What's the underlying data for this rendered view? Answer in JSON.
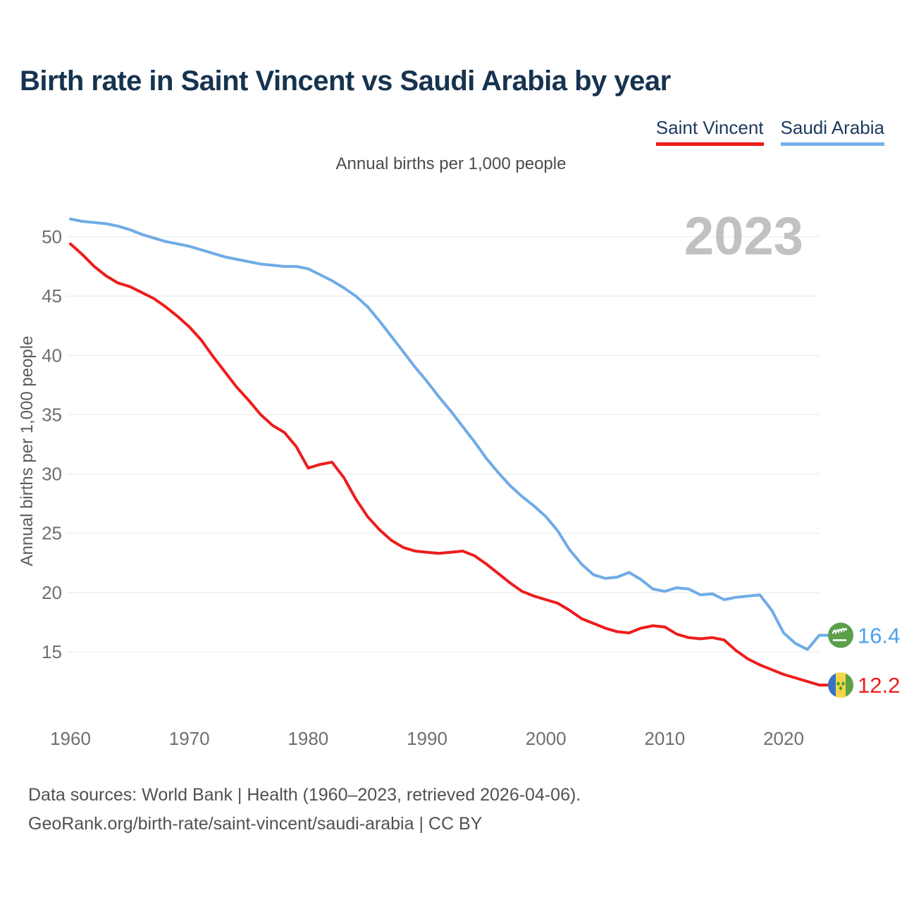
{
  "page": {
    "title": "Birth rate in Saint Vincent vs Saudi Arabia by year",
    "subtitle": "Annual births per 1,000 people",
    "watermark_year": "2023",
    "footer_lines": [
      "Data sources: World Bank | Health (1960–2023, retrieved 2026-04-06).",
      "GeoRank.org/birth-rate/saint-vincent/saudi-arabia | CC BY"
    ]
  },
  "legend": {
    "items": [
      {
        "label": "Saint Vincent",
        "color": "#ee1c1c"
      },
      {
        "label": "Saudi Arabia",
        "color": "#76b1e9"
      }
    ]
  },
  "chart_data": {
    "type": "line",
    "title": "Birth rate in Saint Vincent vs Saudi Arabia by year",
    "subtitle": "Annual births per 1,000 people",
    "ylabel": "Annual births per 1,000 people",
    "xlabel": "",
    "grid": true,
    "legend_position": "top-right",
    "xlim": [
      1960,
      2023
    ],
    "ylim": [
      12,
      52
    ],
    "xticks": [
      1960,
      1970,
      1980,
      1990,
      2000,
      2010,
      2020
    ],
    "yticks": [
      15,
      20,
      25,
      30,
      35,
      40,
      45,
      50
    ],
    "x": [
      1960,
      1961,
      1962,
      1963,
      1964,
      1965,
      1966,
      1967,
      1968,
      1969,
      1970,
      1971,
      1972,
      1973,
      1974,
      1975,
      1976,
      1977,
      1978,
      1979,
      1980,
      1981,
      1982,
      1983,
      1984,
      1985,
      1986,
      1987,
      1988,
      1989,
      1990,
      1991,
      1992,
      1993,
      1994,
      1995,
      1996,
      1997,
      1998,
      1999,
      2000,
      2001,
      2002,
      2003,
      2004,
      2005,
      2006,
      2007,
      2008,
      2009,
      2010,
      2011,
      2012,
      2013,
      2014,
      2015,
      2016,
      2017,
      2018,
      2019,
      2020,
      2021,
      2022,
      2023
    ],
    "series": [
      {
        "name": "Saint Vincent",
        "color": "#ee1c1c",
        "end_label": "12.2",
        "end_label_color": "#ee1c1c",
        "flag": "saint-vincent-flag",
        "values": [
          49.4,
          48.5,
          47.5,
          46.7,
          46.1,
          45.8,
          45.3,
          44.8,
          44.1,
          43.3,
          42.4,
          41.3,
          39.9,
          38.6,
          37.3,
          36.2,
          35.0,
          34.1,
          33.5,
          32.3,
          30.5,
          30.8,
          31.0,
          29.7,
          27.9,
          26.4,
          25.3,
          24.4,
          23.8,
          23.5,
          23.4,
          23.3,
          23.4,
          23.5,
          23.1,
          22.4,
          21.6,
          20.8,
          20.1,
          19.7,
          19.4,
          19.1,
          18.5,
          17.8,
          17.4,
          17.0,
          16.7,
          16.6,
          17.0,
          17.2,
          17.1,
          16.5,
          16.2,
          16.1,
          16.2,
          16.0,
          15.1,
          14.4,
          13.9,
          13.5,
          13.1,
          12.8,
          12.5,
          12.2
        ]
      },
      {
        "name": "Saudi Arabia",
        "color": "#6fabe7",
        "end_label": "16.4",
        "end_label_color": "#4ba0ee",
        "flag": "saudi-arabia-flag",
        "values": [
          51.5,
          51.3,
          51.2,
          51.1,
          50.9,
          50.6,
          50.2,
          49.9,
          49.6,
          49.4,
          49.2,
          48.9,
          48.6,
          48.3,
          48.1,
          47.9,
          47.7,
          47.6,
          47.5,
          47.5,
          47.3,
          46.8,
          46.3,
          45.7,
          45.0,
          44.1,
          42.9,
          41.6,
          40.3,
          39.0,
          37.8,
          36.5,
          35.3,
          34.0,
          32.7,
          31.3,
          30.1,
          29.0,
          28.1,
          27.3,
          26.4,
          25.2,
          23.6,
          22.4,
          21.5,
          21.2,
          21.3,
          21.7,
          21.1,
          20.3,
          20.1,
          20.4,
          20.3,
          19.8,
          19.9,
          19.4,
          19.6,
          19.7,
          19.8,
          18.5,
          16.6,
          15.7,
          15.2,
          16.4
        ]
      }
    ]
  },
  "style": {
    "grid_color": "#e8e8e8",
    "tick_label_color": "#6f6f6f",
    "watermark_color": "#c1c1c1",
    "axis_label_color": "#5c5c5c"
  }
}
